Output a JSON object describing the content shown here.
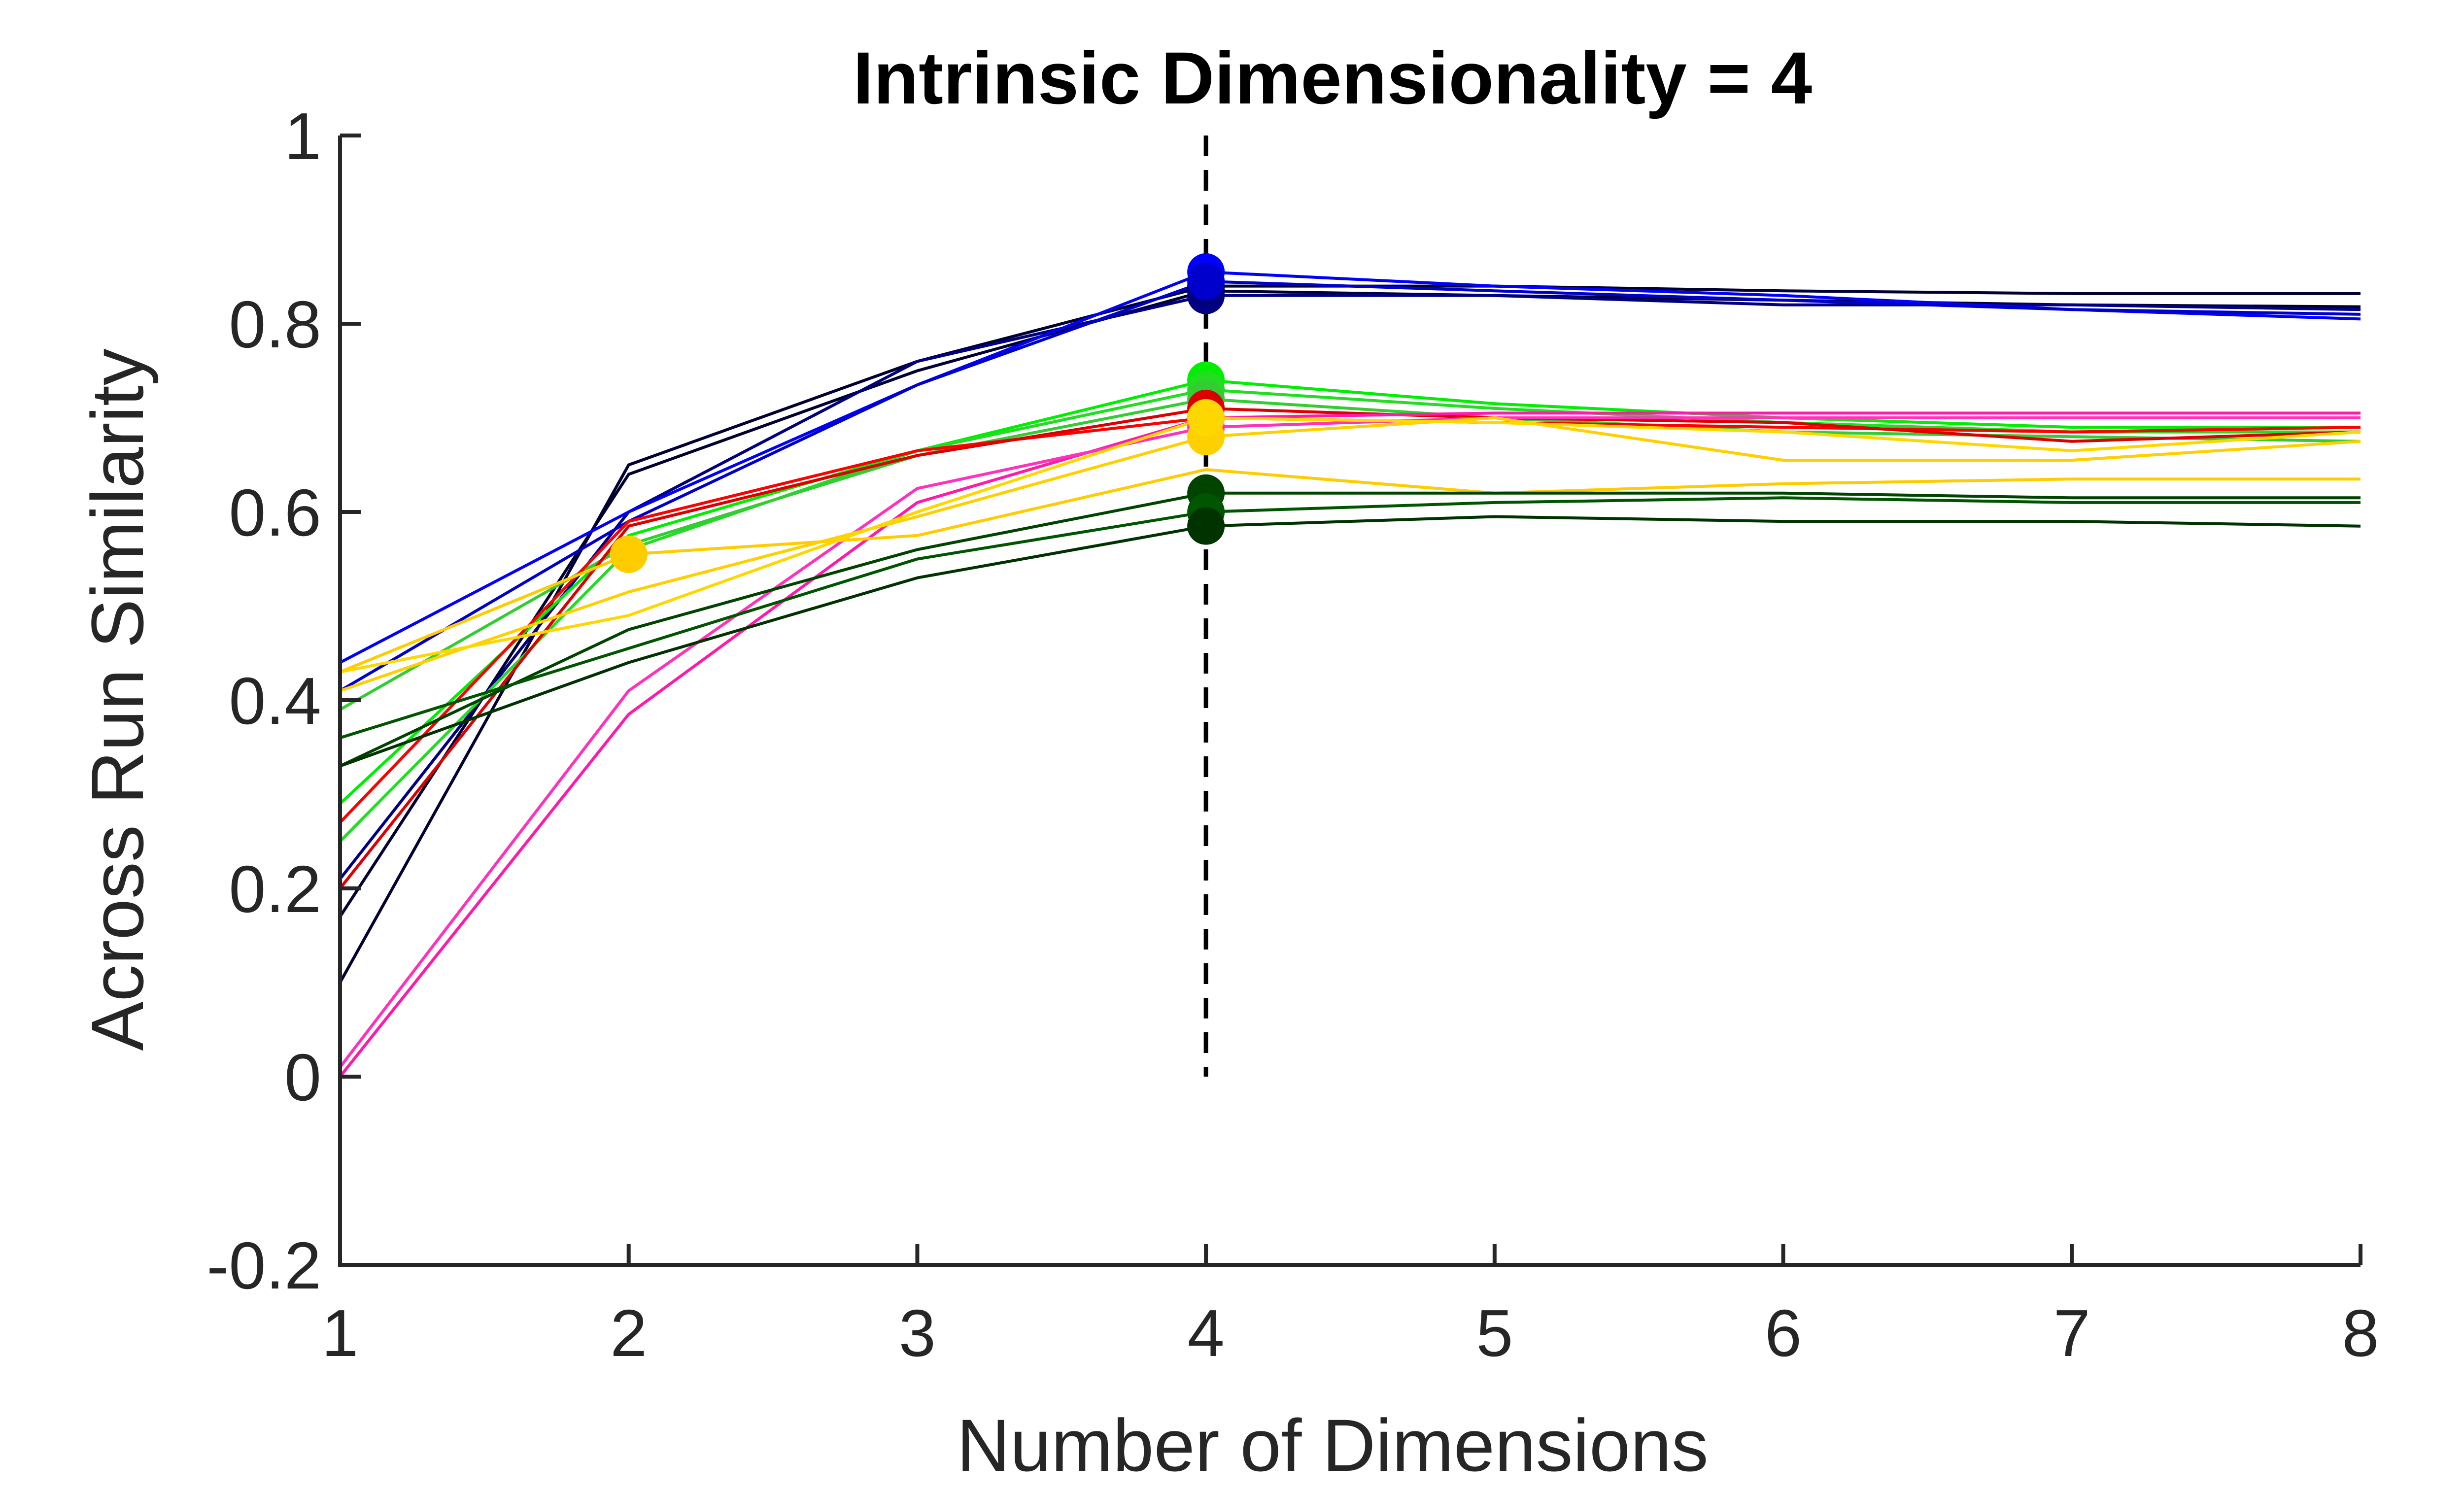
{
  "chart_data": {
    "type": "line",
    "title": "Intrinsic Dimensionality = 4",
    "xlabel": "Number of Dimensions",
    "ylabel": "Across Run Similarity",
    "xlim": [
      1,
      8
    ],
    "ylim": [
      -0.2,
      1
    ],
    "xticks": [
      "1",
      "2",
      "3",
      "4",
      "5",
      "6",
      "7",
      "8"
    ],
    "yticks": [
      "-0.2",
      "0",
      "0.2",
      "0.4",
      "0.6",
      "0.8",
      "1"
    ],
    "x": [
      1,
      2,
      3,
      4,
      5,
      6,
      7,
      8
    ],
    "reference_line": {
      "x": 4,
      "y_range": [
        0,
        1
      ]
    },
    "grid": false,
    "legend": "none",
    "series": [
      {
        "color": "#000033",
        "values": [
          0.1,
          0.65,
          0.76,
          0.84,
          0.84,
          0.835,
          0.832,
          0.832
        ],
        "marker_x": 4
      },
      {
        "color": "#000033",
        "values": [
          0.17,
          0.64,
          0.75,
          0.835,
          0.83,
          0.825,
          0.82,
          0.818
        ],
        "marker_x": 4
      },
      {
        "color": "#000080",
        "values": [
          0.21,
          0.6,
          0.76,
          0.83,
          0.83,
          0.82,
          0.82,
          0.815
        ],
        "marker_x": 4
      },
      {
        "color": "#0000ff",
        "values": [
          0.44,
          0.6,
          0.735,
          0.855,
          0.84,
          0.83,
          0.815,
          0.805
        ],
        "marker_x": 4
      },
      {
        "color": "#0000cc",
        "values": [
          0.41,
          0.59,
          0.735,
          0.845,
          0.835,
          0.825,
          0.815,
          0.81
        ],
        "marker_x": 4
      },
      {
        "color": "#00ee00",
        "values": [
          0.29,
          0.575,
          0.665,
          0.74,
          0.715,
          0.7,
          0.69,
          0.69
        ],
        "marker_x": 4
      },
      {
        "color": "#22dd22",
        "values": [
          0.25,
          0.56,
          0.665,
          0.73,
          0.71,
          0.695,
          0.685,
          0.685
        ],
        "marker_x": 4
      },
      {
        "color": "#33cc33",
        "values": [
          0.39,
          0.565,
          0.66,
          0.72,
          0.7,
          0.685,
          0.68,
          0.675
        ],
        "marker_x": 4
      },
      {
        "color": "#ff0000",
        "values": [
          0.27,
          0.59,
          0.665,
          0.7,
          0.695,
          0.69,
          0.685,
          0.69
        ],
        "marker_x": 4
      },
      {
        "color": "#dd0000",
        "values": [
          0.2,
          0.585,
          0.66,
          0.71,
          0.7,
          0.695,
          0.675,
          0.685
        ],
        "marker_x": 4
      },
      {
        "color": "#ff1aaa",
        "values": [
          0.0,
          0.385,
          0.61,
          0.7,
          0.705,
          0.705,
          0.705,
          0.705
        ],
        "marker_x": 4
      },
      {
        "color": "#ff33bb",
        "values": [
          0.01,
          0.41,
          0.625,
          0.69,
          0.7,
          0.7,
          0.7,
          0.7
        ],
        "marker_x": 4
      },
      {
        "color": "#ffcc00",
        "values": [
          0.43,
          0.555,
          0.575,
          0.645,
          0.62,
          0.63,
          0.635,
          0.635
        ],
        "marker_x": 2
      },
      {
        "color": "#ffd000",
        "values": [
          0.41,
          0.515,
          0.595,
          0.68,
          0.7,
          0.655,
          0.655,
          0.675
        ],
        "marker_x": 4
      },
      {
        "color": "#ffd700",
        "values": [
          0.43,
          0.49,
          0.6,
          0.7,
          0.695,
          0.685,
          0.665,
          0.685
        ],
        "marker_x": 4
      },
      {
        "color": "#004400",
        "values": [
          0.33,
          0.475,
          0.56,
          0.62,
          0.62,
          0.62,
          0.615,
          0.615
        ],
        "marker_x": 4
      },
      {
        "color": "#005500",
        "values": [
          0.36,
          0.455,
          0.55,
          0.6,
          0.61,
          0.615,
          0.61,
          0.61
        ],
        "marker_x": 4
      },
      {
        "color": "#003300",
        "values": [
          0.33,
          0.44,
          0.53,
          0.585,
          0.595,
          0.59,
          0.59,
          0.585
        ],
        "marker_x": 4
      }
    ]
  }
}
